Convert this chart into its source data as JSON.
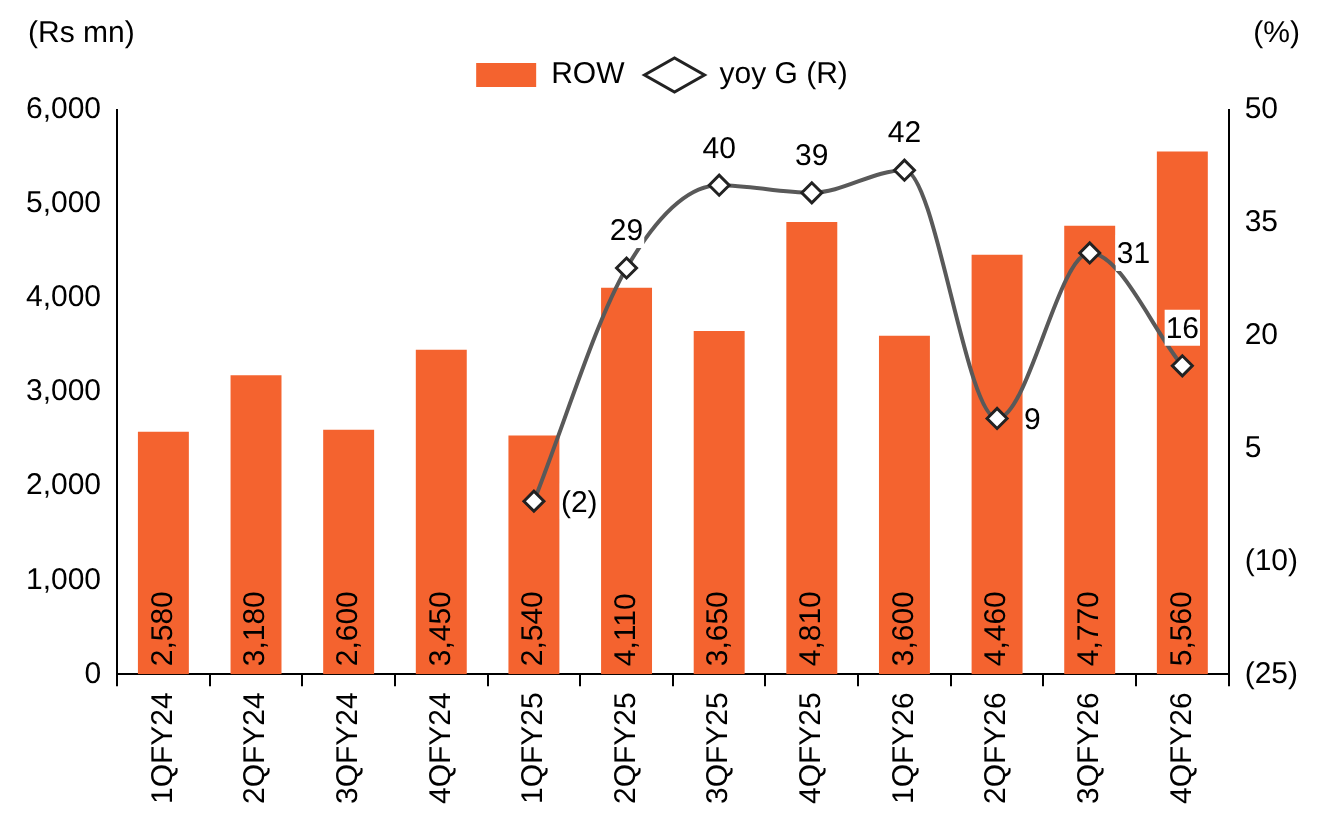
{
  "chart_data": {
    "type": "bar",
    "ylabel": "(Rs mn)",
    "y2label": "(%)",
    "categories": [
      "1QFY24",
      "2QFY24",
      "3QFY24",
      "4QFY24",
      "1QFY25",
      "2QFY25",
      "3QFY25",
      "4QFY25",
      "1QFY26",
      "2QFY26",
      "3QFY26",
      "4QFY26"
    ],
    "series": [
      {
        "name": "ROW",
        "color": "#f4632f",
        "values": [
          2580,
          3180,
          2600,
          3450,
          2540,
          4110,
          3650,
          4810,
          3600,
          4460,
          4770,
          5560
        ],
        "value_labels": [
          "2,580",
          "3,180",
          "2,600",
          "3,450",
          "2,540",
          "4,110",
          "3,650",
          "4,810",
          "3,600",
          "4,460",
          "4,770",
          "5,560"
        ]
      },
      {
        "name": "yoy G (R)",
        "type": "line",
        "axis": "y2",
        "color": "#595959",
        "marker": "diamond",
        "values": [
          null,
          null,
          null,
          null,
          -2,
          29,
          40,
          39,
          42,
          9,
          31,
          16
        ],
        "value_labels": [
          null,
          null,
          null,
          null,
          "(2)",
          "29",
          "40",
          "39",
          "42",
          "9",
          "31",
          "16"
        ]
      }
    ],
    "ylim": [
      0,
      6000
    ],
    "yticks": [
      {
        "value": 0,
        "label": "0"
      },
      {
        "value": 1000,
        "label": "1,000"
      },
      {
        "value": 2000,
        "label": "2,000"
      },
      {
        "value": 3000,
        "label": "3,000"
      },
      {
        "value": 4000,
        "label": "4,000"
      },
      {
        "value": 5000,
        "label": "5,000"
      },
      {
        "value": 6000,
        "label": "6,000"
      }
    ],
    "y2lim": [
      -25,
      50
    ],
    "y2ticks": [
      {
        "value": -25,
        "label": "(25)"
      },
      {
        "value": -10,
        "label": "(10)"
      },
      5,
      20,
      35,
      50
    ],
    "grid": false,
    "legend": "top"
  }
}
